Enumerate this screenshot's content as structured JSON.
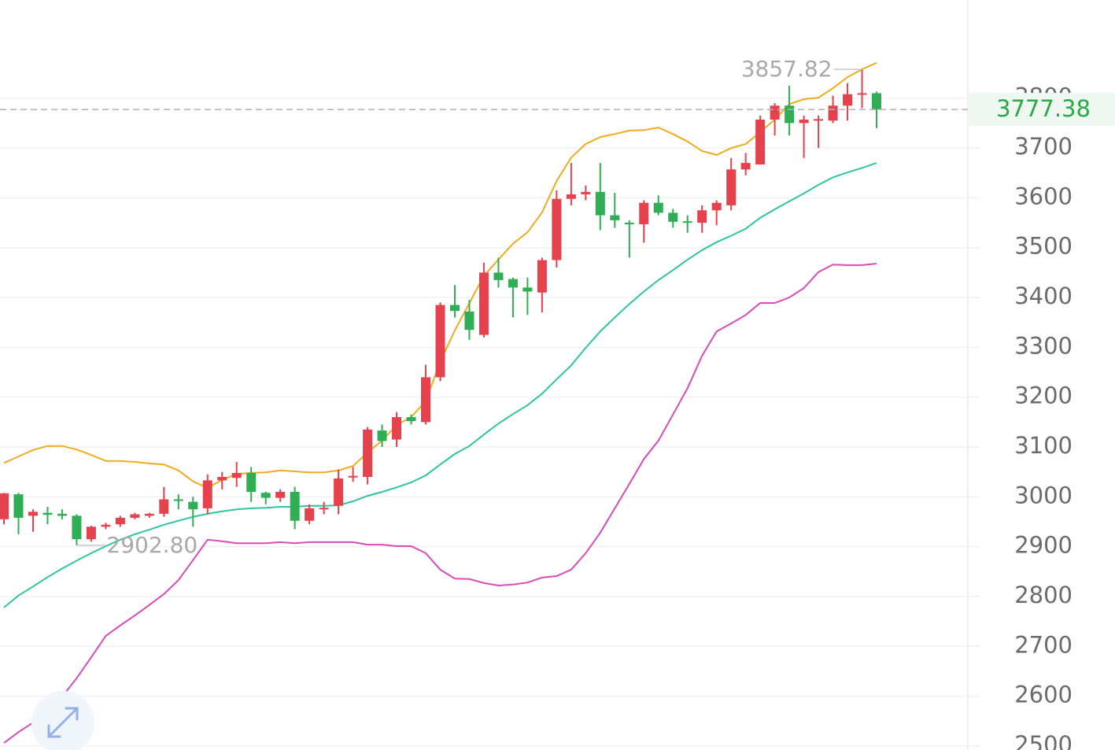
{
  "chart_data": {
    "type": "candlestick",
    "up_color": "#e5424d",
    "down_color": "#2fae55",
    "open": [
      2955,
      3005,
      2962,
      2968,
      2966,
      2962,
      2915,
      2940,
      2945,
      2958,
      2962,
      2966,
      2995,
      2990,
      2977,
      3033,
      3038,
      3048,
      3008,
      2998,
      3010,
      2952,
      2975,
      2982,
      3040,
      3040,
      3133,
      3115,
      3160,
      3150,
      3240,
      3385,
      3372,
      3325,
      3450,
      3437,
      3420,
      3410,
      3475,
      3598,
      3607,
      3612,
      3565,
      3550,
      3547,
      3590,
      3570,
      3553,
      3550,
      3575,
      3585,
      3657,
      3667,
      3757,
      3785,
      3750,
      3755,
      3755,
      3785,
      3808,
      3810
    ],
    "high": [
      3008,
      3008,
      2975,
      2980,
      2975,
      2965,
      2942,
      2948,
      2962,
      2968,
      2968,
      3020,
      3005,
      3000,
      3045,
      3050,
      3070,
      3060,
      3010,
      3015,
      3020,
      2985,
      2990,
      3055,
      3060,
      3140,
      3145,
      3170,
      3165,
      3265,
      3390,
      3425,
      3395,
      3470,
      3480,
      3440,
      3440,
      3480,
      3615,
      3670,
      3625,
      3670,
      3610,
      3555,
      3595,
      3605,
      3578,
      3565,
      3585,
      3595,
      3680,
      3690,
      3765,
      3790,
      3825,
      3765,
      3765,
      3805,
      3830,
      3857.82,
      3813
    ],
    "low": [
      2945,
      2925,
      2930,
      2945,
      2955,
      2902.8,
      2910,
      2935,
      2940,
      2955,
      2958,
      2960,
      2975,
      2940,
      2965,
      3015,
      3020,
      2990,
      2985,
      2990,
      2935,
      2945,
      2965,
      2965,
      3030,
      3025,
      3100,
      3100,
      3145,
      3145,
      3232,
      3360,
      3315,
      3320,
      3420,
      3360,
      3365,
      3370,
      3460,
      3585,
      3595,
      3535,
      3540,
      3480,
      3510,
      3565,
      3540,
      3530,
      3530,
      3545,
      3575,
      3645,
      3667,
      3725,
      3725,
      3680,
      3700,
      3750,
      3755,
      3780,
      3740
    ],
    "close": [
      3007,
      2958,
      2970,
      2964,
      2962,
      2915,
      2940,
      2944,
      2958,
      2965,
      2966,
      2995,
      2992,
      2975,
      3033,
      3040,
      3048,
      3010,
      2998,
      3010,
      2952,
      2977,
      2978,
      3037,
      3042,
      3135,
      3112,
      3160,
      3152,
      3240,
      3385,
      3373,
      3335,
      3450,
      3435,
      3420,
      3412,
      3475,
      3598,
      3607,
      3612,
      3565,
      3555,
      3548,
      3590,
      3570,
      3552,
      3550,
      3575,
      3590,
      3657,
      3670,
      3757,
      3785,
      3750,
      3757,
      3758,
      3785,
      3808,
      3810,
      3777.38
    ],
    "series": [
      {
        "color": "#f0ab1e",
        "values": [
          3068,
          3081,
          3094,
          3102,
          3102,
          3095,
          3084,
          3072,
          3072,
          3070,
          3067,
          3065,
          3053,
          3031,
          3018,
          3034,
          3046,
          3048,
          3049,
          3053,
          3051,
          3049,
          3049,
          3053,
          3062,
          3089,
          3113,
          3144,
          3160,
          3192,
          3271,
          3334,
          3389,
          3444,
          3476,
          3508,
          3531,
          3571,
          3634,
          3681,
          3708,
          3722,
          3728,
          3735,
          3736,
          3741,
          3728,
          3713,
          3694,
          3686,
          3700,
          3708,
          3732,
          3757,
          3788,
          3798,
          3801,
          3820,
          3842,
          3858,
          3871
        ]
      },
      {
        "color": "#2ec4a0",
        "values": [
          2778,
          2802,
          2820,
          2839,
          2856,
          2872,
          2887,
          2901,
          2914,
          2925,
          2934,
          2944,
          2952,
          2960,
          2966,
          2971,
          2975,
          2977,
          2978,
          2980,
          2980,
          2982,
          2982,
          2983,
          2991,
          3002,
          3010,
          3019,
          3029,
          3043,
          3065,
          3086,
          3102,
          3125,
          3147,
          3166,
          3184,
          3207,
          3236,
          3264,
          3299,
          3332,
          3360,
          3387,
          3412,
          3435,
          3455,
          3476,
          3495,
          3511,
          3524,
          3538,
          3560,
          3577,
          3593,
          3609,
          3626,
          3641,
          3651,
          3660,
          3670
        ]
      },
      {
        "color": "#d94bb8",
        "values": [
          2506,
          2528,
          2547,
          2565,
          2599,
          2636,
          2678,
          2721,
          2742,
          2762,
          2783,
          2805,
          2833,
          2873,
          2914,
          2911,
          2907,
          2907,
          2907,
          2909,
          2907,
          2909,
          2909,
          2909,
          2909,
          2904,
          2904,
          2901,
          2901,
          2887,
          2854,
          2836,
          2835,
          2827,
          2822,
          2824,
          2828,
          2838,
          2841,
          2854,
          2887,
          2928,
          2977,
          3026,
          3076,
          3113,
          3165,
          3218,
          3283,
          3332,
          3348,
          3365,
          3389,
          3389,
          3400,
          3419,
          3451,
          3466,
          3465,
          3465,
          3468
        ]
      }
    ],
    "annotations": [
      {
        "value": 3857.82,
        "label": "3857.82"
      },
      {
        "value": 2902.8,
        "label": "2902.80"
      }
    ],
    "current_price": {
      "value": 3777.38,
      "label": "3777.38",
      "color": "#2aa84a"
    },
    "ylim": [
      2492,
      3997
    ],
    "yticks": [
      2500,
      2600,
      2700,
      2800,
      2900,
      3000,
      3100,
      3200,
      3300,
      3400,
      3500,
      3600,
      3700,
      3800
    ],
    "grid": true
  }
}
